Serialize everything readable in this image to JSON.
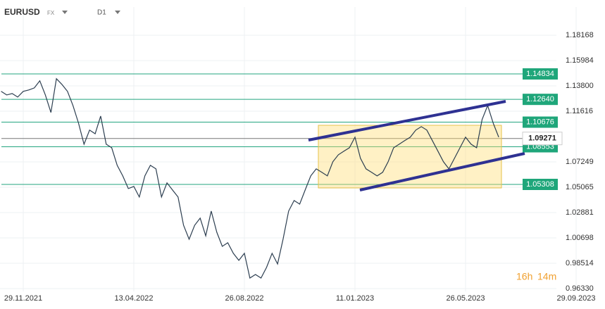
{
  "header": {
    "symbol": "EURUSD",
    "market": "FX",
    "interval": "D1"
  },
  "countdown": {
    "hours": "16h",
    "minutes": "14m"
  },
  "chart_data": {
    "type": "line",
    "color": "#2c3e50",
    "categories": [
      null,
      null,
      null,
      null,
      "29.11.2021",
      null,
      null,
      null,
      null,
      null,
      null,
      null,
      null,
      null,
      null,
      null,
      null,
      null,
      null,
      null,
      null,
      null,
      null,
      null,
      "13.04.2022",
      null,
      null,
      null,
      null,
      null,
      null,
      null,
      null,
      null,
      null,
      null,
      null,
      null,
      null,
      null,
      null,
      null,
      null,
      null,
      "26.08.2022",
      null,
      null,
      null,
      null,
      null,
      null,
      null,
      null,
      null,
      null,
      null,
      null,
      null,
      null,
      null,
      null,
      null,
      null,
      null,
      "11.01.2023",
      null,
      null,
      null,
      null,
      null,
      null,
      null,
      null,
      null,
      null,
      null,
      null,
      null,
      null,
      null,
      null,
      null,
      null,
      null,
      "26.05.2023",
      null,
      null,
      null,
      null,
      null,
      null,
      null,
      null,
      null,
      null,
      null,
      null,
      null,
      null,
      null,
      null,
      null,
      null,
      null,
      "29.09.2023"
    ],
    "values": [
      1.1333,
      1.1302,
      1.1314,
      1.1284,
      1.1333,
      1.1345,
      1.1363,
      1.1424,
      1.1302,
      1.1151,
      1.1442,
      1.1393,
      1.1333,
      1.1211,
      1.1059,
      1.0877,
      1.0999,
      1.0968,
      1.112,
      1.0877,
      1.0847,
      1.0695,
      1.0604,
      1.0495,
      1.0513,
      1.0422,
      1.0604,
      1.0695,
      1.0665,
      1.0422,
      1.0544,
      1.0483,
      1.0422,
      1.0179,
      1.0058,
      1.0179,
      1.024,
      1.0088,
      1.0301,
      1.0119,
      0.9997,
      1.0028,
      0.9937,
      0.9876,
      0.9937,
      0.9724,
      0.9754,
      0.9724,
      0.9815,
      0.9937,
      0.9845,
      1.0058,
      1.0301,
      1.0392,
      1.0361,
      1.0483,
      1.0604,
      1.0665,
      1.0635,
      1.0604,
      1.0726,
      1.0786,
      1.0817,
      1.0847,
      1.0938,
      1.0756,
      1.0665,
      1.0635,
      1.0604,
      1.0635,
      1.0726,
      1.0847,
      1.0877,
      1.0908,
      1.0938,
      1.0999,
      1.1029,
      1.0999,
      1.0908,
      1.0817,
      1.0726,
      1.0665,
      1.0756,
      1.0847,
      1.0938,
      1.0877,
      1.0847,
      1.109,
      1.1211,
      1.1059,
      1.0938,
      null,
      null,
      null,
      null,
      null,
      null,
      null,
      null,
      null,
      null,
      null,
      null,
      null,
      null
    ],
    "ylim": [
      0.9572,
      1.206
    ],
    "yticks": [
      {
        "value": 0.9633,
        "label": "0.96330"
      },
      0.98514,
      1.00698,
      1.02881,
      1.05065,
      1.07249,
      1.11616,
      {
        "value": 1.138,
        "label": "1.13800"
      },
      1.15984,
      1.18168
    ],
    "levels": [
      1.14834,
      {
        "value": 1.1264,
        "label": "1.12640"
      },
      1.10676,
      1.08553,
      1.05308
    ],
    "last_price": 1.09271,
    "grid": true
  }
}
